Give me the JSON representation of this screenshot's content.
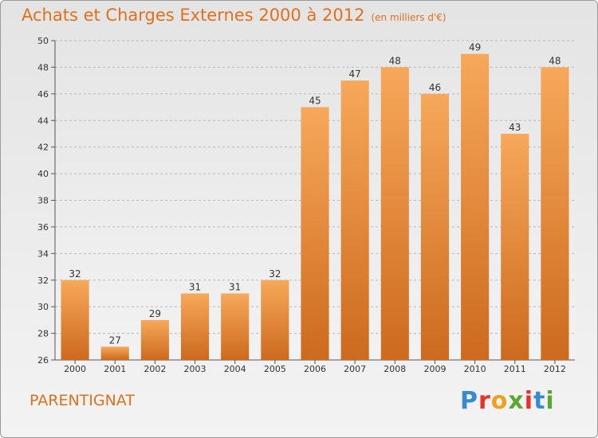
{
  "chart_title": {
    "main": "Achats et Charges Externes 2000 à 2012",
    "unit": "(en milliers d'€)"
  },
  "region_name": "PARENTIGNAT",
  "logo": {
    "text": "Proxiti",
    "letters": [
      "P",
      "r",
      "o",
      "x",
      "i",
      "t",
      "i"
    ],
    "letter_colors": [
      "#3a8ad0",
      "#e3332a",
      "#f0a020",
      "#5aa832",
      "#e3332a",
      "#3a8ad0",
      "#5aa832"
    ]
  },
  "colors": {
    "bar_top": "#f7a85a",
    "bar_bottom": "#cc6a1e",
    "title": "#e0701c"
  },
  "chart_data": {
    "type": "bar",
    "categories": [
      "2000",
      "2001",
      "2002",
      "2003",
      "2004",
      "2005",
      "2006",
      "2007",
      "2008",
      "2009",
      "2010",
      "2011",
      "2012"
    ],
    "values": [
      32,
      27,
      29,
      31,
      31,
      32,
      45,
      47,
      48,
      46,
      49,
      43,
      48
    ],
    "ylim": [
      26,
      50
    ],
    "yticks": [
      26,
      28,
      30,
      32,
      34,
      36,
      38,
      40,
      42,
      44,
      46,
      48,
      50
    ],
    "grid": "horizontal-dashed",
    "data_labels": true
  }
}
